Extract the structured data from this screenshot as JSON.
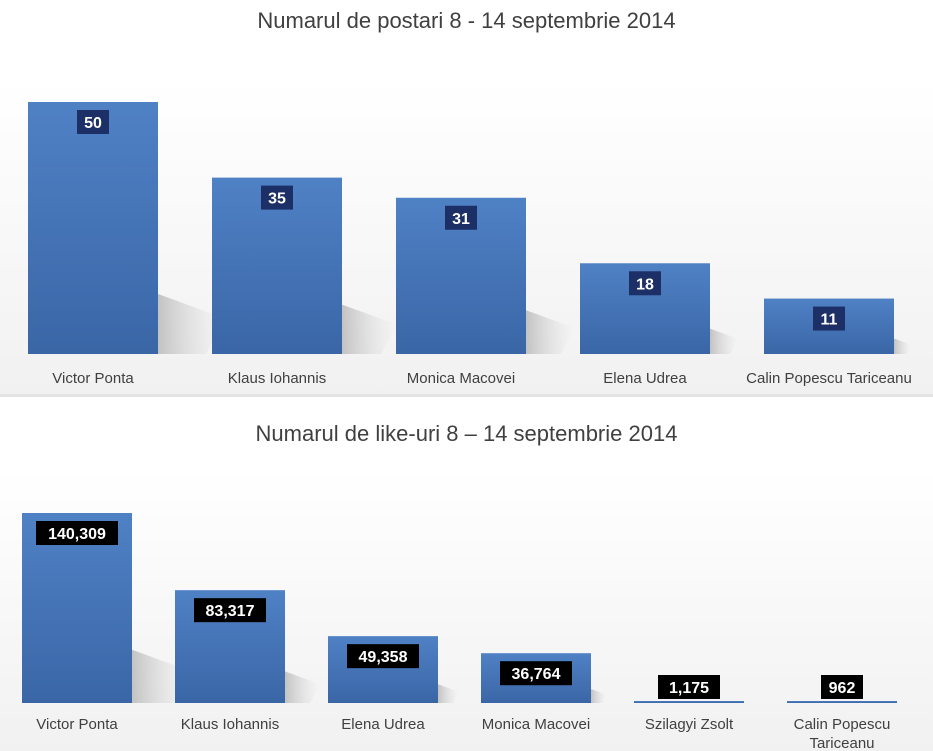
{
  "colors": {
    "bar_fill_top": "#4f81c5",
    "bar_fill_bottom": "#3a66a6",
    "label_box_top_chart": "#1c2f66",
    "label_box_bottom_chart": "#000000",
    "label_text": "#ffffff",
    "category_text": "#404040"
  },
  "chart_data": [
    {
      "type": "bar",
      "title": "Numarul de postari 8 - 14 septembrie 2014",
      "categories": [
        "Victor Ponta",
        "Klaus Iohannis",
        "Monica Macovei",
        "Elena Udrea",
        "Calin Popescu Tariceanu"
      ],
      "values": [
        50,
        35,
        31,
        18,
        11
      ],
      "labels": [
        "50",
        "35",
        "31",
        "18",
        "11"
      ],
      "ylim": [
        0,
        50
      ],
      "grid": false,
      "legend": "none"
    },
    {
      "type": "bar",
      "title": "Numarul de like-uri  8 – 14  septembrie 2014",
      "categories": [
        "Victor Ponta",
        "Klaus Iohannis",
        "Elena Udrea",
        "Monica Macovei",
        "Szilagyi Zsolt",
        "Calin Popescu Tariceanu"
      ],
      "values": [
        140309,
        83317,
        49358,
        36764,
        1175,
        962
      ],
      "labels": [
        "140,309",
        "83,317",
        "49,358",
        "36,764",
        "1,175",
        "962"
      ],
      "ylim": [
        0,
        140309
      ],
      "grid": false,
      "legend": "none"
    }
  ]
}
